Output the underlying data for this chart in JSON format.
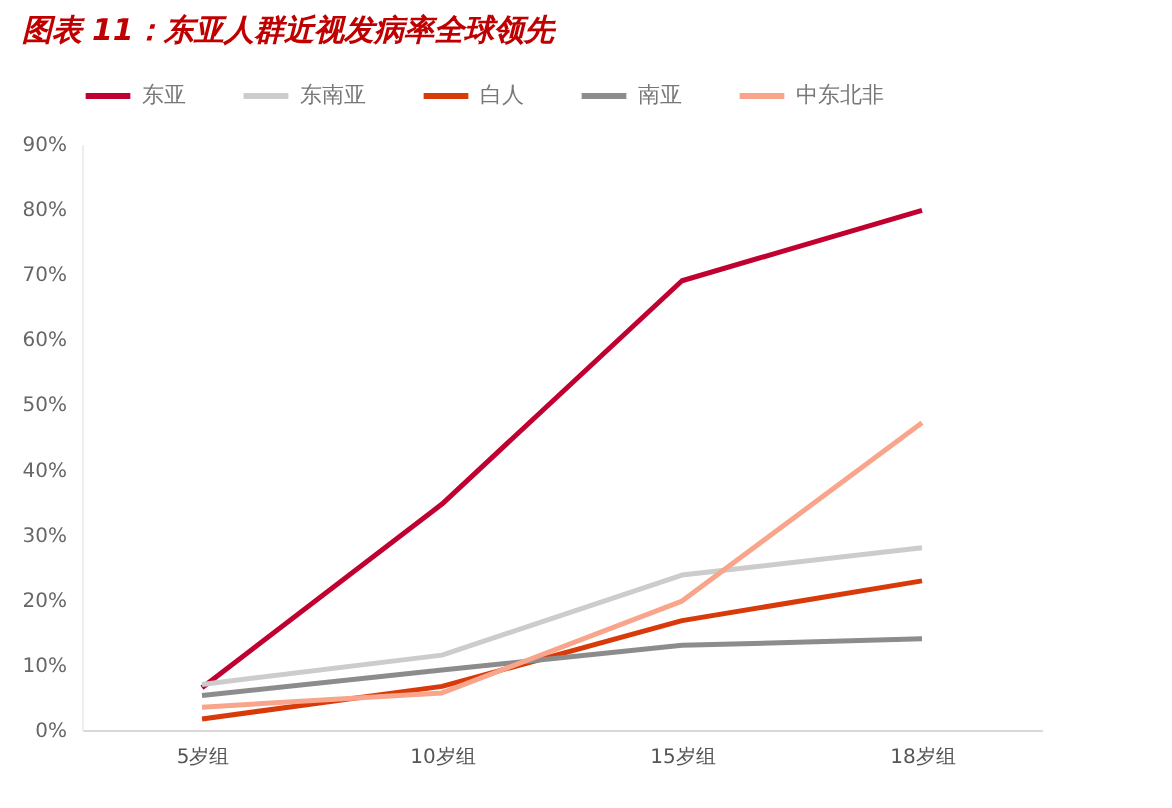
{
  "chart_data": {
    "type": "line",
    "title": "图表 11：东亚人群近视发病率全球领先",
    "categories": [
      "5岁组",
      "10岁组",
      "15岁组",
      "18岁组"
    ],
    "series": [
      {
        "name": "东亚",
        "color": "#c00030",
        "values": [
          6.5,
          34.7,
          69,
          79.8
        ]
      },
      {
        "name": "东南亚",
        "color": "#cccccc",
        "values": [
          7,
          11.5,
          23.8,
          28
        ]
      },
      {
        "name": "白人",
        "color": "#d83a0a",
        "values": [
          1.7,
          6.7,
          16.8,
          22.9
        ]
      },
      {
        "name": "南亚",
        "color": "#8c8c8c",
        "values": [
          5.3,
          9.2,
          13,
          14
        ]
      },
      {
        "name": "中东北非",
        "color": "#f9a58c",
        "values": [
          3.5,
          5.7,
          19.8,
          47.2
        ]
      }
    ],
    "ylim": [
      0,
      90
    ],
    "yticks": [
      {
        "value": 0,
        "label": "0%"
      },
      {
        "value": 10,
        "label": "10%"
      },
      {
        "value": 20,
        "label": "20%"
      },
      {
        "value": 30,
        "label": "30%"
      },
      {
        "value": 40,
        "label": "40%"
      },
      {
        "value": 50,
        "label": "50%"
      },
      {
        "value": 60,
        "label": "60%"
      },
      {
        "value": 70,
        "label": "70%"
      },
      {
        "value": 80,
        "label": "80%"
      },
      {
        "value": 90,
        "label": "90%"
      }
    ],
    "grid": false,
    "legend": "top",
    "marker": "none",
    "line_style": "solid"
  }
}
